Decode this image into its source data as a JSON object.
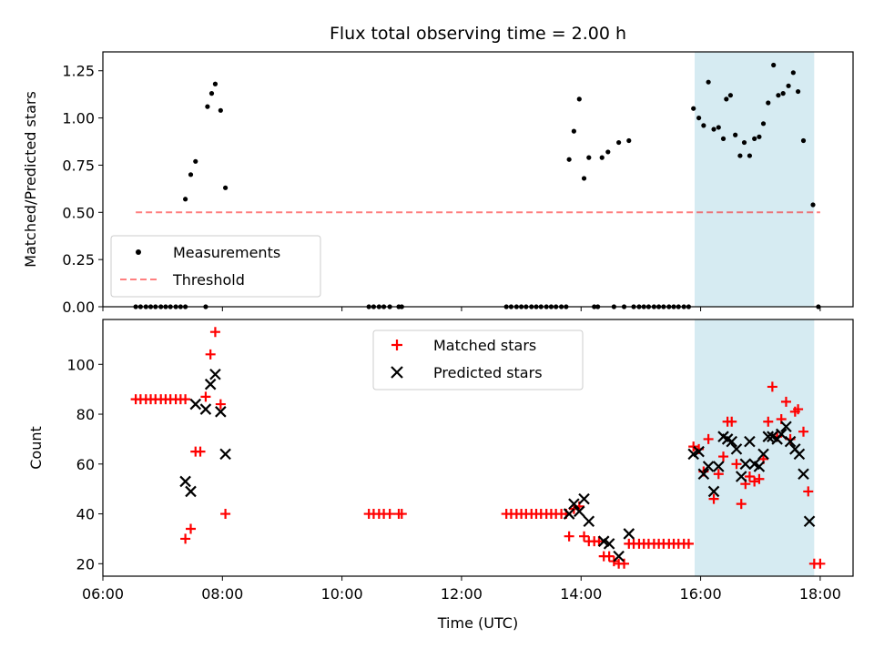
{
  "chart_data": {
    "title": "Flux total observing time = 2.00 h",
    "xlabel": "Time (UTC)",
    "x_ticks": [
      "06:00",
      "08:00",
      "10:00",
      "12:00",
      "14:00",
      "16:00",
      "18:00"
    ],
    "x_tick_hours": [
      6,
      8,
      10,
      12,
      14,
      16,
      18
    ],
    "xlim_hours": [
      6.0,
      18.55
    ],
    "highlight_span_hours": [
      15.9,
      17.9
    ],
    "highlight_color": "#add8e6",
    "panels": [
      {
        "type": "scatter",
        "ylabel": "Matched/Predicted stars",
        "ylim": [
          0,
          1.35
        ],
        "y_ticks": [
          "0.00",
          "0.25",
          "0.50",
          "0.75",
          "1.00",
          "1.25"
        ],
        "y_tick_values": [
          0,
          0.25,
          0.5,
          0.75,
          1.0,
          1.25
        ],
        "legend": {
          "placement": "lower-left",
          "entries": [
            "Measurements",
            "Threshold"
          ]
        },
        "threshold": {
          "y": 0.5,
          "x_range_hours": [
            6.55,
            18.0
          ],
          "color": "#ff0000"
        },
        "series": [
          {
            "name": "Measurements",
            "marker": "dot",
            "color": "#000000",
            "points": [
              [
                6.55,
                0
              ],
              [
                6.63,
                0
              ],
              [
                6.72,
                0
              ],
              [
                6.8,
                0
              ],
              [
                6.88,
                0
              ],
              [
                6.97,
                0
              ],
              [
                7.05,
                0
              ],
              [
                7.13,
                0
              ],
              [
                7.22,
                0
              ],
              [
                7.3,
                0
              ],
              [
                7.38,
                0
              ],
              [
                7.38,
                0.57
              ],
              [
                7.47,
                0.7
              ],
              [
                7.55,
                0.77
              ],
              [
                7.72,
                0.0
              ],
              [
                7.75,
                1.06
              ],
              [
                7.82,
                1.13
              ],
              [
                7.88,
                1.18
              ],
              [
                7.97,
                1.04
              ],
              [
                8.05,
                0.63
              ],
              [
                10.45,
                0
              ],
              [
                10.53,
                0
              ],
              [
                10.62,
                0
              ],
              [
                10.7,
                0
              ],
              [
                10.8,
                0
              ],
              [
                10.95,
                0
              ],
              [
                11.0,
                0
              ],
              [
                12.75,
                0
              ],
              [
                12.83,
                0
              ],
              [
                12.92,
                0
              ],
              [
                13.0,
                0
              ],
              [
                13.08,
                0
              ],
              [
                13.17,
                0
              ],
              [
                13.25,
                0
              ],
              [
                13.33,
                0
              ],
              [
                13.42,
                0
              ],
              [
                13.5,
                0
              ],
              [
                13.58,
                0
              ],
              [
                13.67,
                0
              ],
              [
                13.75,
                0
              ],
              [
                13.8,
                0.78
              ],
              [
                13.88,
                0.93
              ],
              [
                13.97,
                1.1
              ],
              [
                14.05,
                0.68
              ],
              [
                14.13,
                0.79
              ],
              [
                14.22,
                0
              ],
              [
                14.28,
                0
              ],
              [
                14.35,
                0.79
              ],
              [
                14.45,
                0.82
              ],
              [
                14.55,
                0
              ],
              [
                14.63,
                0.87
              ],
              [
                14.72,
                0
              ],
              [
                14.8,
                0.88
              ],
              [
                14.88,
                0
              ],
              [
                14.97,
                0
              ],
              [
                15.05,
                0
              ],
              [
                15.13,
                0
              ],
              [
                15.22,
                0
              ],
              [
                15.3,
                0
              ],
              [
                15.38,
                0
              ],
              [
                15.47,
                0
              ],
              [
                15.55,
                0
              ],
              [
                15.63,
                0
              ],
              [
                15.72,
                0
              ],
              [
                15.8,
                0
              ],
              [
                15.88,
                1.05
              ],
              [
                15.97,
                1.0
              ],
              [
                16.05,
                0.96
              ],
              [
                16.13,
                1.19
              ],
              [
                16.22,
                0.94
              ],
              [
                16.3,
                0.95
              ],
              [
                16.38,
                0.89
              ],
              [
                16.43,
                1.1
              ],
              [
                16.5,
                1.12
              ],
              [
                16.58,
                0.91
              ],
              [
                16.66,
                0.8
              ],
              [
                16.73,
                0.87
              ],
              [
                16.82,
                0.8
              ],
              [
                16.9,
                0.89
              ],
              [
                16.98,
                0.9
              ],
              [
                17.05,
                0.97
              ],
              [
                17.13,
                1.08
              ],
              [
                17.22,
                1.28
              ],
              [
                17.3,
                1.12
              ],
              [
                17.38,
                1.13
              ],
              [
                17.47,
                1.17
              ],
              [
                17.55,
                1.24
              ],
              [
                17.63,
                1.14
              ],
              [
                17.72,
                0.88
              ],
              [
                17.88,
                0.54
              ],
              [
                17.97,
                0.0
              ]
            ]
          }
        ]
      },
      {
        "type": "scatter",
        "ylabel": "Count",
        "ylim": [
          15,
          118
        ],
        "y_ticks": [
          "20",
          "40",
          "60",
          "80",
          "100"
        ],
        "y_tick_values": [
          20,
          40,
          60,
          80,
          100
        ],
        "legend": {
          "placement": "top-center",
          "entries": [
            "Matched stars",
            "Predicted stars"
          ]
        },
        "series": [
          {
            "name": "Matched stars",
            "marker": "plus",
            "color": "#ff0000",
            "points": [
              [
                6.55,
                86
              ],
              [
                6.63,
                86
              ],
              [
                6.72,
                86
              ],
              [
                6.8,
                86
              ],
              [
                6.88,
                86
              ],
              [
                6.97,
                86
              ],
              [
                7.05,
                86
              ],
              [
                7.13,
                86
              ],
              [
                7.22,
                86
              ],
              [
                7.3,
                86
              ],
              [
                7.38,
                86
              ],
              [
                7.38,
                30
              ],
              [
                7.47,
                34
              ],
              [
                7.55,
                65
              ],
              [
                7.63,
                65
              ],
              [
                7.72,
                87
              ],
              [
                7.8,
                104
              ],
              [
                7.88,
                113
              ],
              [
                7.97,
                84
              ],
              [
                8.05,
                40
              ],
              [
                10.45,
                40
              ],
              [
                10.53,
                40
              ],
              [
                10.62,
                40
              ],
              [
                10.7,
                40
              ],
              [
                10.8,
                40
              ],
              [
                10.95,
                40
              ],
              [
                11.0,
                40
              ],
              [
                12.75,
                40
              ],
              [
                12.83,
                40
              ],
              [
                12.92,
                40
              ],
              [
                13.0,
                40
              ],
              [
                13.08,
                40
              ],
              [
                13.17,
                40
              ],
              [
                13.25,
                40
              ],
              [
                13.33,
                40
              ],
              [
                13.42,
                40
              ],
              [
                13.5,
                40
              ],
              [
                13.58,
                40
              ],
              [
                13.67,
                40
              ],
              [
                13.75,
                40
              ],
              [
                13.8,
                31
              ],
              [
                13.88,
                42
              ],
              [
                13.97,
                43
              ],
              [
                14.05,
                31
              ],
              [
                14.13,
                29
              ],
              [
                14.22,
                29
              ],
              [
                14.3,
                29
              ],
              [
                14.38,
                23
              ],
              [
                14.47,
                23
              ],
              [
                14.55,
                21
              ],
              [
                14.63,
                20
              ],
              [
                14.72,
                20
              ],
              [
                14.8,
                28
              ],
              [
                14.88,
                28
              ],
              [
                14.97,
                28
              ],
              [
                15.05,
                28
              ],
              [
                15.13,
                28
              ],
              [
                15.22,
                28
              ],
              [
                15.3,
                28
              ],
              [
                15.38,
                28
              ],
              [
                15.47,
                28
              ],
              [
                15.55,
                28
              ],
              [
                15.63,
                28
              ],
              [
                15.72,
                28
              ],
              [
                15.8,
                28
              ],
              [
                15.88,
                67
              ],
              [
                15.97,
                66
              ],
              [
                16.05,
                57
              ],
              [
                16.13,
                70
              ],
              [
                16.22,
                46
              ],
              [
                16.3,
                56
              ],
              [
                16.38,
                63
              ],
              [
                16.45,
                77
              ],
              [
                16.52,
                77
              ],
              [
                16.6,
                60
              ],
              [
                16.68,
                44
              ],
              [
                16.75,
                52
              ],
              [
                16.82,
                55
              ],
              [
                16.9,
                53
              ],
              [
                16.98,
                54
              ],
              [
                17.05,
                62
              ],
              [
                17.13,
                77
              ],
              [
                17.2,
                91
              ],
              [
                17.28,
                71
              ],
              [
                17.35,
                78
              ],
              [
                17.43,
                85
              ],
              [
                17.5,
                70
              ],
              [
                17.58,
                81
              ],
              [
                17.63,
                82
              ],
              [
                17.72,
                73
              ],
              [
                17.8,
                49
              ],
              [
                17.9,
                20
              ],
              [
                18.0,
                20
              ]
            ]
          },
          {
            "name": "Predicted stars",
            "marker": "x",
            "color": "#000000",
            "points": [
              [
                7.38,
                53
              ],
              [
                7.47,
                49
              ],
              [
                7.55,
                84
              ],
              [
                7.72,
                82
              ],
              [
                7.8,
                92
              ],
              [
                7.88,
                96
              ],
              [
                7.97,
                81
              ],
              [
                8.05,
                64
              ],
              [
                13.8,
                40
              ],
              [
                13.88,
                44
              ],
              [
                13.97,
                41
              ],
              [
                14.05,
                46
              ],
              [
                14.13,
                37
              ],
              [
                14.38,
                29
              ],
              [
                14.47,
                28
              ],
              [
                14.63,
                23
              ],
              [
                14.8,
                32
              ],
              [
                15.88,
                64
              ],
              [
                15.97,
                65
              ],
              [
                16.05,
                56
              ],
              [
                16.13,
                59
              ],
              [
                16.22,
                49
              ],
              [
                16.3,
                59
              ],
              [
                16.38,
                71
              ],
              [
                16.45,
                70
              ],
              [
                16.52,
                69
              ],
              [
                16.6,
                66
              ],
              [
                16.68,
                55
              ],
              [
                16.75,
                60
              ],
              [
                16.82,
                69
              ],
              [
                16.9,
                60
              ],
              [
                16.98,
                59
              ],
              [
                17.05,
                64
              ],
              [
                17.13,
                71
              ],
              [
                17.2,
                71
              ],
              [
                17.28,
                70
              ],
              [
                17.35,
                72
              ],
              [
                17.43,
                75
              ],
              [
                17.5,
                69
              ],
              [
                17.58,
                66
              ],
              [
                17.65,
                64
              ],
              [
                17.72,
                56
              ],
              [
                17.82,
                37
              ]
            ]
          }
        ]
      }
    ]
  }
}
